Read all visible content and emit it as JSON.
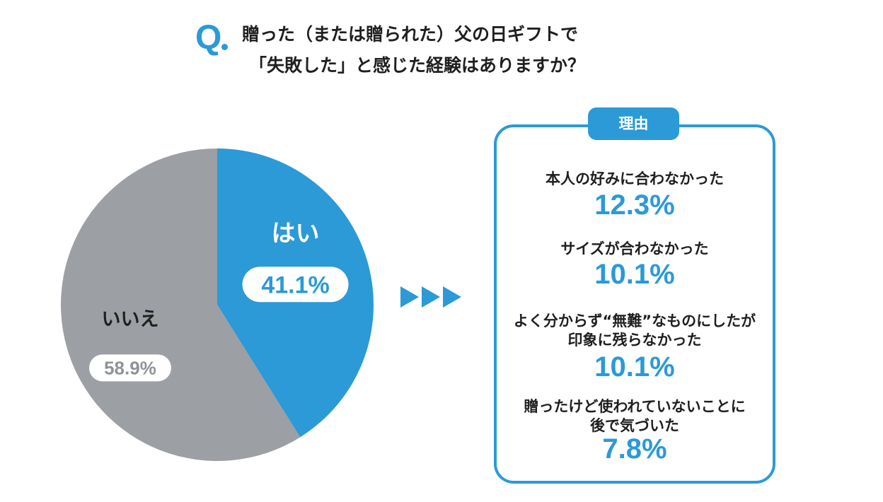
{
  "question": {
    "mark": "Q",
    "line1": "贈った（または贈られた）父の日ギフトで",
    "line2": "「失敗した」と感じた経験はありますか？"
  },
  "chart_data": {
    "type": "pie",
    "start": "12 o'clock, clockwise",
    "slices": [
      {
        "label": "はい",
        "value": 41.1,
        "value_text": "41.1%",
        "color": "#2b9ad6"
      },
      {
        "label": "いいえ",
        "value": 58.9,
        "value_text": "58.9%",
        "color": "#9c9fa3"
      }
    ]
  },
  "reasons": {
    "header": "理由",
    "items": [
      {
        "label_lines": [
          "本人の好みに合わなかった"
        ],
        "value": "12.3%"
      },
      {
        "label_lines": [
          "サイズが合わなかった"
        ],
        "value": "10.1%"
      },
      {
        "label_lines": [
          "よく分からず“無難”なものにしたが",
          "印象に残らなかった"
        ],
        "value": "10.1%"
      },
      {
        "label_lines": [
          "贈ったけど使われていないことに",
          "後で気づいた"
        ],
        "value": "7.8%"
      }
    ]
  },
  "colors": {
    "accent": "#2b9ad6",
    "gray": "#9c9fa3"
  }
}
